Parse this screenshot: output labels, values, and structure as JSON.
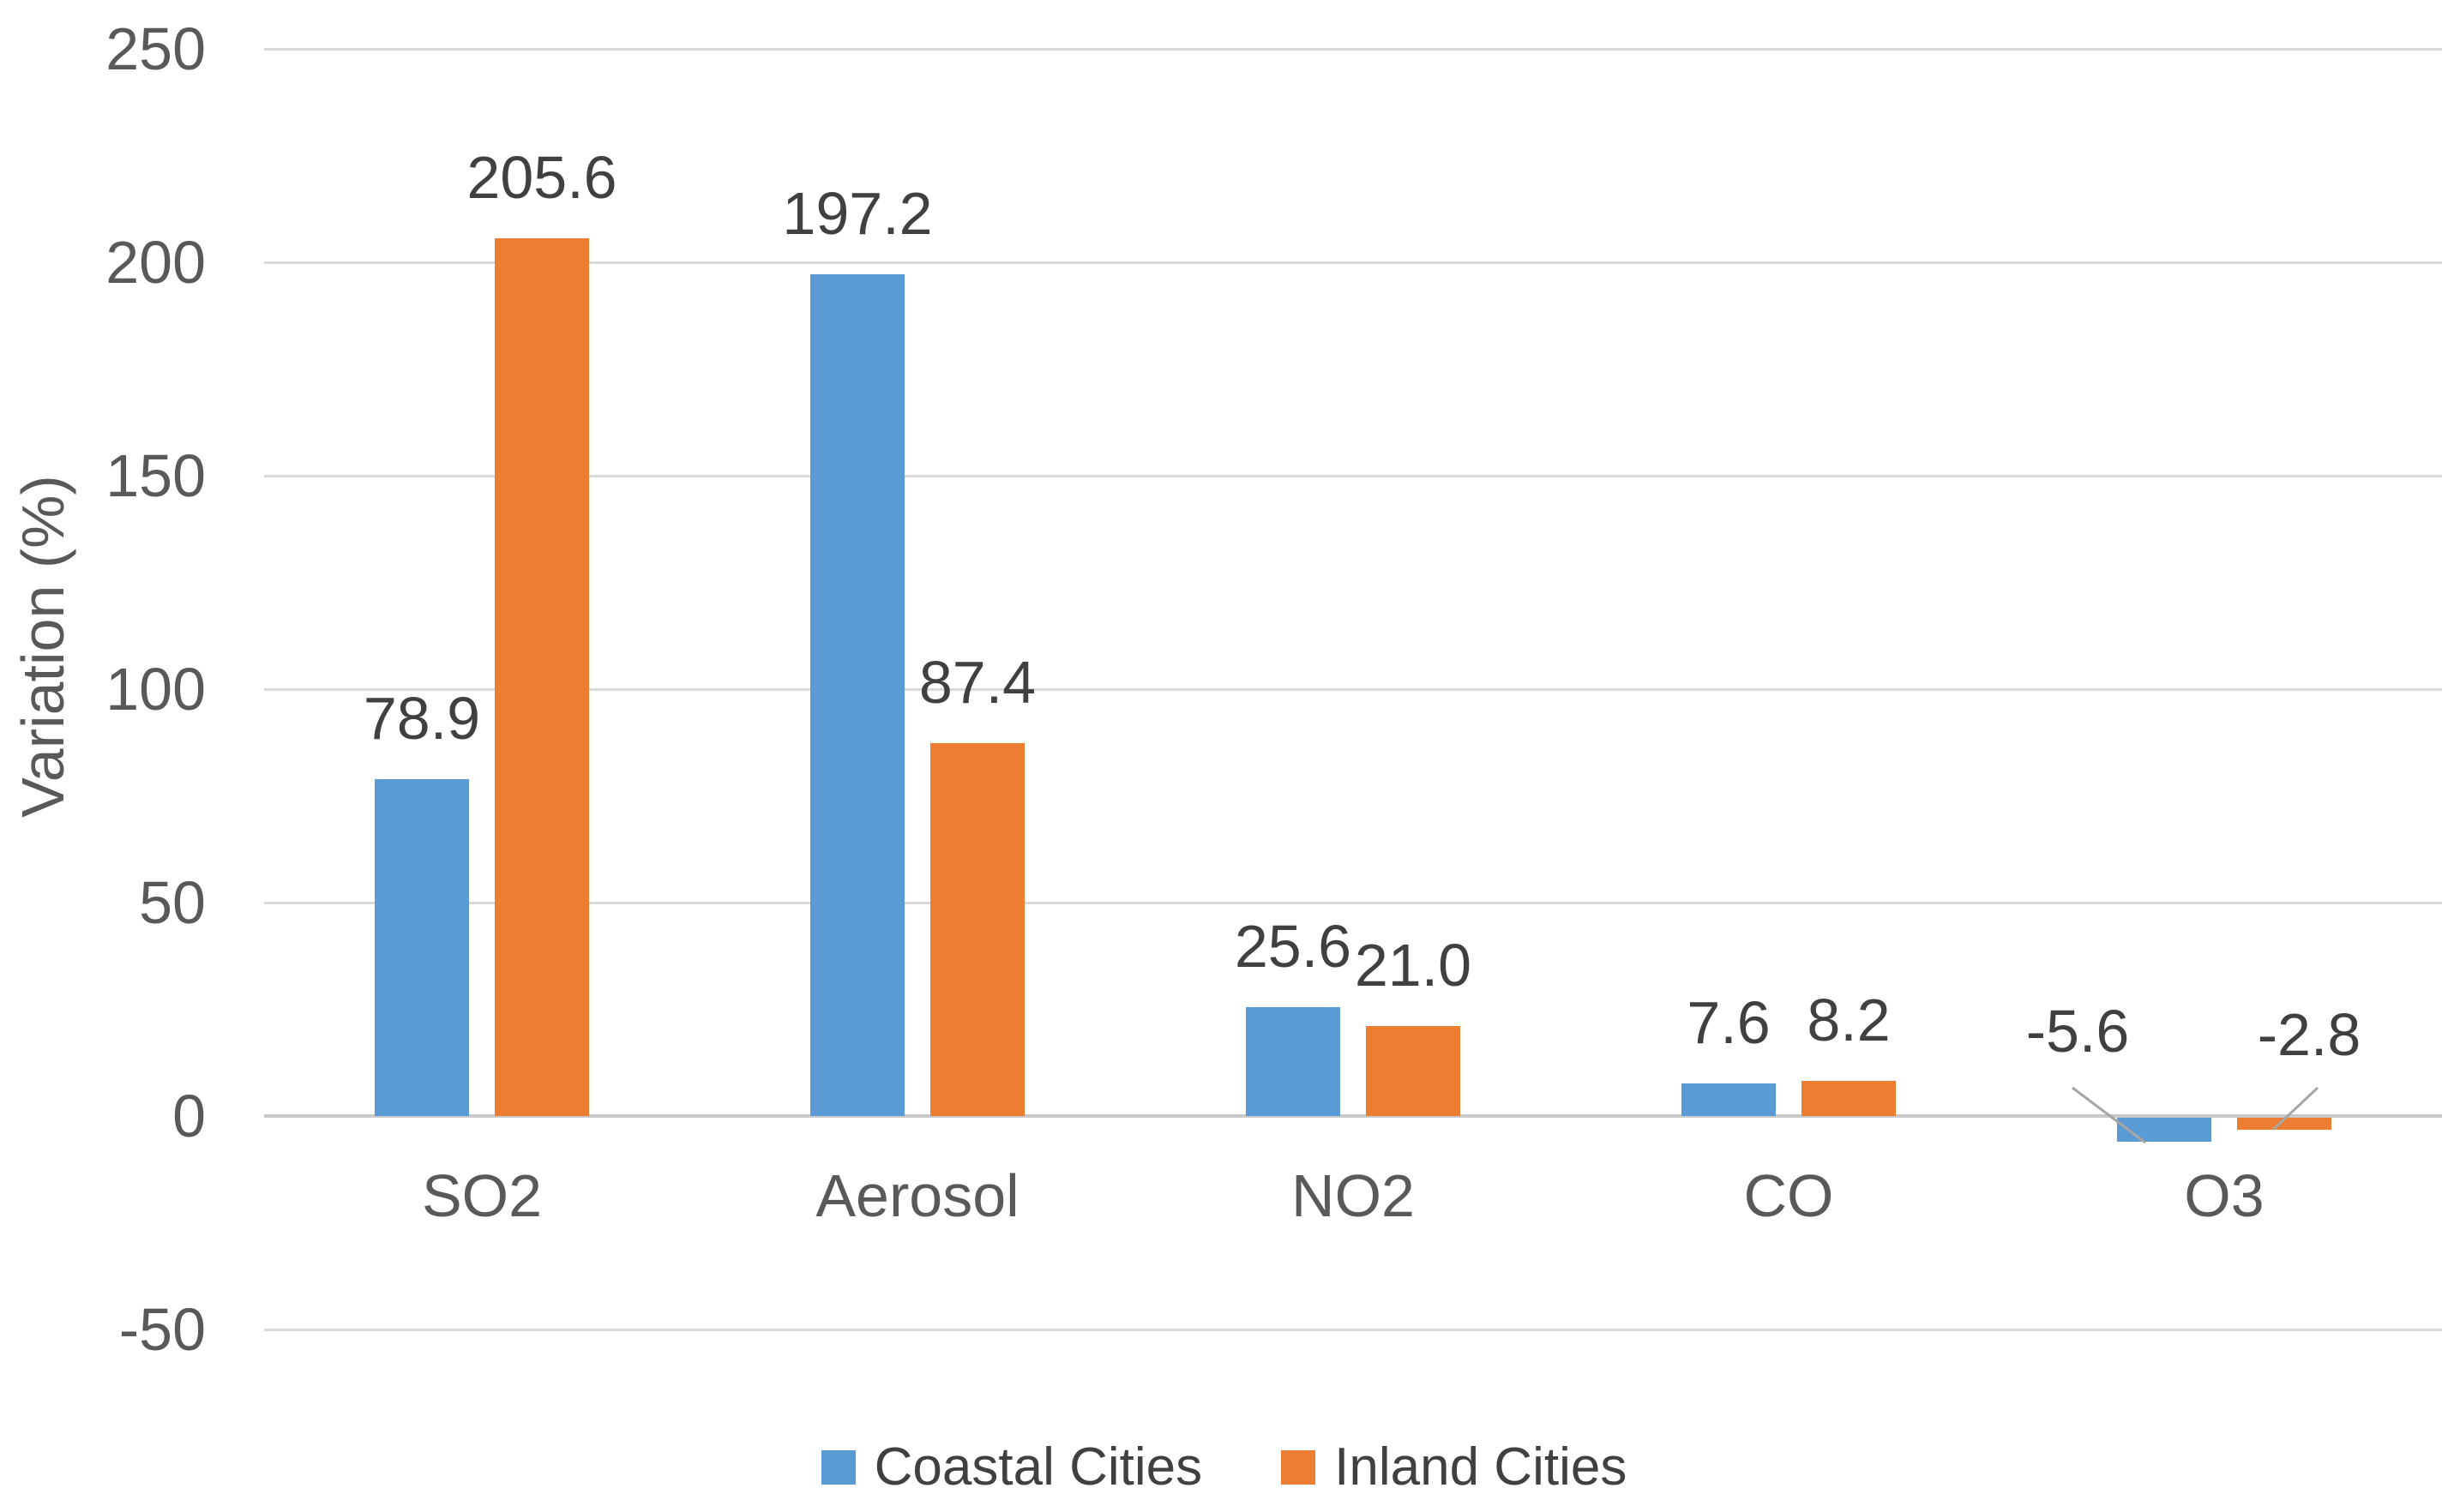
{
  "chart_data": {
    "type": "bar",
    "title": "",
    "categories": [
      "SO2",
      "Aerosol",
      "NO2",
      "CO",
      "O3"
    ],
    "series": [
      {
        "name": "Coastal Cities",
        "color": "#5B9BD5",
        "values": [
          78.9,
          197.2,
          25.6,
          7.6,
          -5.6
        ],
        "labels": [
          "78.9",
          "197.2",
          "25.6",
          "7.6",
          "-5.6"
        ]
      },
      {
        "name": "Inland Cities",
        "color": "#ED7D31",
        "values": [
          205.6,
          87.4,
          21.0,
          8.2,
          -2.8
        ],
        "labels": [
          "205.6",
          "87.4",
          "21.0",
          "8.2",
          "-2.8"
        ]
      }
    ],
    "xlabel": "",
    "ylabel": "Variation (%)",
    "yticks": [
      250,
      200,
      150,
      100,
      50,
      0,
      -50
    ],
    "ytick_labels": [
      "250",
      "200",
      "150",
      "100",
      "50",
      "0",
      "-50"
    ],
    "ylim": [
      -50,
      250
    ],
    "grid": true,
    "legend_position": "bottom",
    "legend": [
      "Coastal Cities",
      "Inland Cities"
    ],
    "colors": {
      "coastal_cities": "#5B9BD5",
      "inland_cities": "#ED7D31",
      "gridline": "#D9D9D9",
      "zero_axis": "#C8C8C8",
      "tick_text": "#595959",
      "data_label_text": "#404040",
      "leader_line": "#A6A6A6",
      "background": "#FFFFFF"
    }
  }
}
